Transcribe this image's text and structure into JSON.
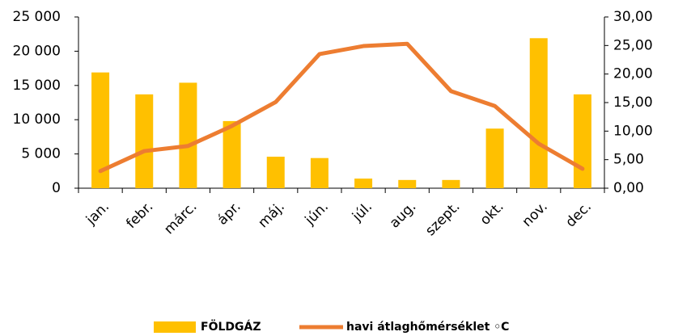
{
  "chart_data": {
    "type": "bar_line",
    "categories": [
      "jan.",
      "febr.",
      "márc.",
      "ápr.",
      "máj.",
      "jún.",
      "júl.",
      "aug.",
      "szept.",
      "okt.",
      "nov.",
      "dec."
    ],
    "series": [
      {
        "name": "FÖLDGÁZ",
        "color": "#FFC000",
        "type": "bar",
        "values": [
          16900,
          13700,
          15400,
          9800,
          4600,
          4400,
          1400,
          1200,
          1200,
          8700,
          21900,
          13700
        ]
      },
      {
        "name": "havi átlaghőmérséklet ◦C",
        "color": "#ED7D31",
        "type": "line",
        "axis": "y2",
        "values": [
          3.0,
          6.5,
          7.4,
          10.9,
          15.1,
          23.5,
          24.9,
          25.3,
          17.0,
          14.4,
          7.8,
          3.4
        ]
      }
    ],
    "ylim": [
      0,
      25000
    ],
    "yticks": [
      0,
      {
        "value": 5000,
        "label": "5 000"
      },
      {
        "value": 10000,
        "label": "10 000"
      },
      {
        "value": 15000,
        "label": "15 000"
      },
      {
        "value": 20000,
        "label": "20 000"
      },
      {
        "value": 25000,
        "label": "25 000"
      }
    ],
    "y2lim": [
      0,
      30
    ],
    "y2ticks": [
      {
        "value": 0,
        "label": "0,00"
      },
      {
        "value": 5,
        "label": "5,00"
      },
      {
        "value": 10,
        "label": "10,00"
      },
      {
        "value": 15,
        "label": "15,00"
      },
      {
        "value": 20,
        "label": "20,00"
      },
      {
        "value": 25,
        "label": "25,00"
      },
      {
        "value": 30,
        "label": "30,00"
      }
    ],
    "legend": "bottom"
  }
}
